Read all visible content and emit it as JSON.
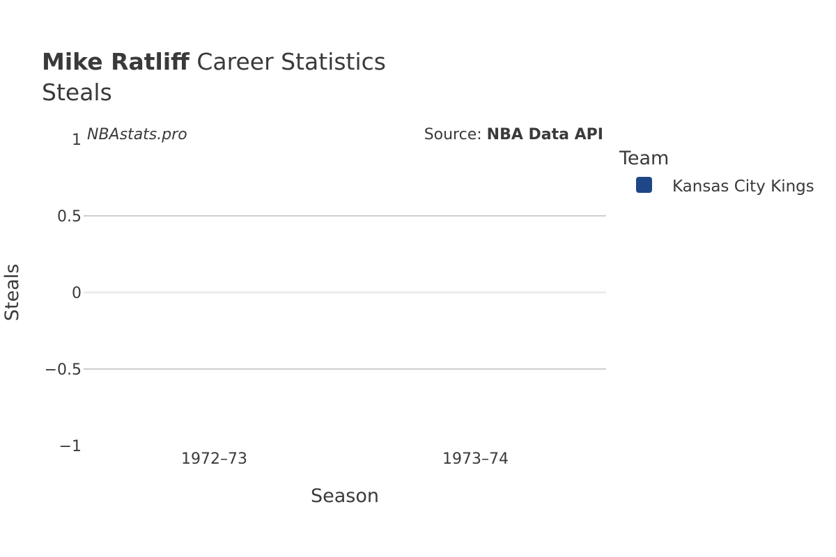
{
  "title": {
    "player": "Mike Ratliff",
    "rest": " Career Statistics",
    "subtitle": "Steals"
  },
  "watermark": "NBAstats.pro",
  "source": {
    "prefix": "Source: ",
    "name": "NBA Data API"
  },
  "legend": {
    "title": "Team",
    "placement": "right"
  },
  "chart_data": {
    "type": "bar",
    "categories": [
      "1972–73",
      "1973–74"
    ],
    "series": [
      {
        "name": "Kansas City Kings",
        "color": "#1f4788",
        "values": [
          0,
          0
        ]
      }
    ],
    "xlabel": "Season",
    "ylabel": "Steals",
    "ylim": [
      -1,
      1
    ],
    "yticks": [
      1,
      0.5,
      0,
      -0.5,
      -1
    ],
    "ytick_labels": [
      "1",
      "0.5",
      "0",
      "−0.5",
      "−1"
    ],
    "grid": true
  }
}
